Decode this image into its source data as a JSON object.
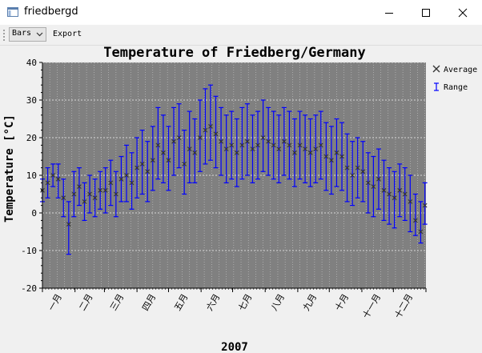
{
  "window": {
    "title": "friedbergd",
    "minimize_icon": "minimize-icon",
    "maximize_icon": "maximize-icon",
    "close_icon": "close-icon"
  },
  "toolbar": {
    "chart_type_value": "Bars",
    "export_label": "Export"
  },
  "chart_data": {
    "type": "errorbar",
    "title": "Temperature of Friedberg/Germany",
    "ylabel": "Temperature [°C]",
    "xlabel": "2007",
    "ylim": [
      -20,
      40
    ],
    "yticks": [
      -20,
      -10,
      0,
      10,
      20,
      30,
      40
    ],
    "grid": true,
    "legend_position": "right",
    "months": [
      "一月",
      "二月",
      "三月",
      "四月",
      "五月",
      "六月",
      "七月",
      "八月",
      "九月",
      "十月",
      "十一月",
      "十二月"
    ],
    "series": [
      {
        "name": "Average",
        "marker": "x",
        "color": "#333333"
      },
      {
        "name": "Range",
        "marker": "errorbar",
        "color": "#0000ff"
      }
    ],
    "day_of_year": [
      1,
      6,
      11,
      16,
      21,
      26,
      31,
      36,
      41,
      46,
      51,
      56,
      61,
      66,
      71,
      76,
      81,
      86,
      91,
      96,
      101,
      106,
      111,
      116,
      121,
      126,
      131,
      136,
      141,
      146,
      151,
      156,
      161,
      166,
      171,
      176,
      181,
      186,
      191,
      196,
      201,
      206,
      211,
      216,
      221,
      226,
      231,
      236,
      241,
      246,
      251,
      256,
      261,
      266,
      271,
      276,
      281,
      286,
      291,
      296,
      301,
      306,
      311,
      316,
      321,
      326,
      331,
      336,
      341,
      346,
      351,
      356,
      361,
      365
    ],
    "average": [
      6,
      8,
      10,
      9,
      4,
      -3,
      5,
      7,
      3,
      5,
      4,
      6,
      6,
      8,
      5,
      9,
      10,
      8,
      12,
      13,
      11,
      14,
      18,
      16,
      14,
      19,
      20,
      13,
      17,
      16,
      20,
      22,
      23,
      21,
      19,
      17,
      18,
      16,
      18,
      19,
      17,
      18,
      20,
      19,
      18,
      17,
      19,
      18,
      16,
      18,
      17,
      16,
      17,
      18,
      15,
      14,
      16,
      15,
      12,
      10,
      12,
      11,
      8,
      7,
      9,
      6,
      5,
      4,
      6,
      5,
      3,
      -2,
      -5,
      2
    ],
    "range_low": [
      3,
      4,
      7,
      4,
      -1,
      -11,
      -1,
      2,
      -2,
      0,
      -1,
      1,
      0,
      2,
      -1,
      3,
      3,
      1,
      4,
      5,
      3,
      6,
      9,
      8,
      6,
      10,
      12,
      5,
      8,
      8,
      11,
      13,
      14,
      12,
      10,
      8,
      9,
      7,
      9,
      10,
      8,
      9,
      11,
      10,
      9,
      8,
      10,
      9,
      7,
      9,
      8,
      7,
      8,
      9,
      6,
      5,
      7,
      6,
      3,
      2,
      4,
      3,
      0,
      -1,
      1,
      -2,
      -3,
      -4,
      -1,
      -2,
      -5,
      -6,
      -8,
      -3
    ],
    "range_high": [
      9,
      12,
      13,
      13,
      9,
      3,
      11,
      12,
      8,
      10,
      9,
      11,
      12,
      14,
      11,
      15,
      18,
      16,
      20,
      22,
      19,
      23,
      28,
      26,
      23,
      28,
      29,
      22,
      27,
      25,
      30,
      33,
      34,
      31,
      28,
      26,
      27,
      25,
      28,
      29,
      26,
      27,
      30,
      28,
      27,
      26,
      28,
      27,
      25,
      27,
      26,
      25,
      26,
      27,
      24,
      23,
      25,
      24,
      21,
      19,
      20,
      19,
      16,
      15,
      17,
      14,
      12,
      11,
      13,
      12,
      10,
      5,
      3,
      8
    ]
  }
}
